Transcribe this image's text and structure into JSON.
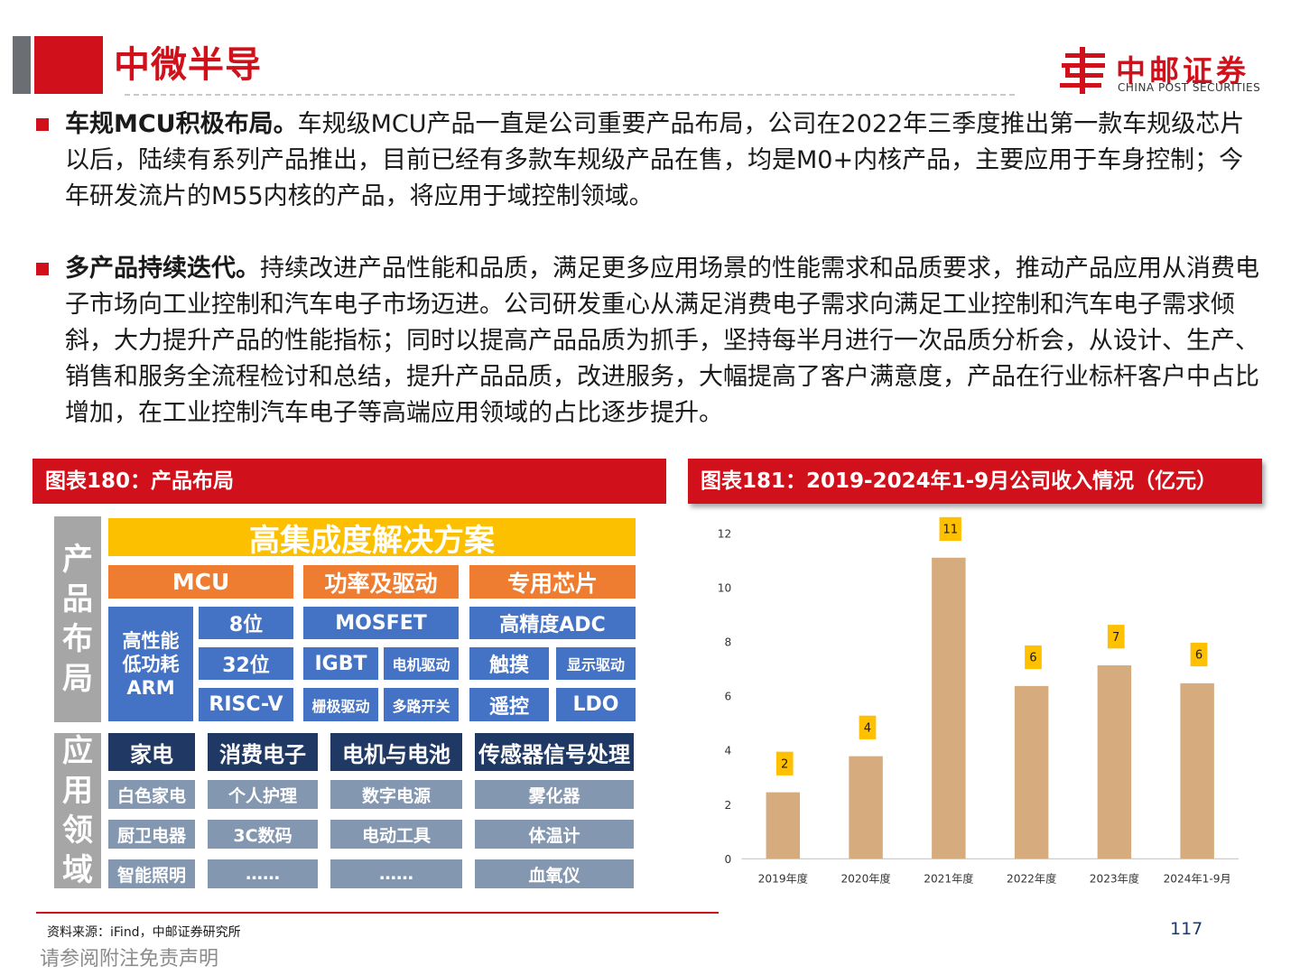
{
  "header": {
    "title": "中微半导",
    "logo_cn": "中邮证券",
    "logo_en": "CHINA POST SECURITIES",
    "brand_color": "#d0111b"
  },
  "paragraphs": [
    {
      "lead": "车规MCU积极布局。",
      "text": "车规级MCU产品一直是公司重要产品布局，公司在2022年三季度推出第一款车规级芯片以后，陆续有系列产品推出，目前已经有多款车规级产品在售，均是M0+内核产品，主要应用于车身控制；今年研发流片的M55内核的产品，将应用于域控制领域。"
    },
    {
      "lead": "多产品持续迭代。",
      "text": "持续改进产品性能和品质，满足更多应用场景的性能需求和品质要求，推动产品应用从消费电子市场向工业控制和汽车电子市场迈进。公司研发重心从满足消费电子需求向满足工业控制和汽车电子需求倾斜，大力提升产品的性能指标；同时以提高产品品质为抓手，坚持每半月进行一次品质分析会，从设计、生产、销售和服务全流程检讨和总结，提升产品品质，改进服务，大幅提高了客户满意度，产品在行业标杆客户中占比增加，在工业控制汽车电子等高端应用领域的占比逐步提升。"
    }
  ],
  "figure180": {
    "title": "图表180：产品布局",
    "side_top": "产品布局",
    "side_bottom": "应用领域",
    "banner": "高集成度解决方案",
    "categories": [
      "MCU",
      "功率及驱动",
      "专用芯片"
    ],
    "mcu_arm": "高性能低功耗ARM",
    "mcu_items": [
      "8位",
      "32位",
      "RISC-V"
    ],
    "power_top": "MOSFET",
    "power_items": [
      "IGBT",
      "电机驱动",
      "栅极驱动",
      "多路开关"
    ],
    "special_top": "高精度ADC",
    "special_items": [
      "触摸",
      "显示驱动",
      "遥控",
      "LDO"
    ],
    "apps": [
      {
        "name": "家电",
        "items": [
          "白色家电",
          "厨卫电器",
          "智能照明"
        ]
      },
      {
        "name": "消费电子",
        "items": [
          "个人护理",
          "3C数码",
          "……"
        ]
      },
      {
        "name": "电机与电池",
        "items": [
          "数字电源",
          "电动工具",
          "……"
        ]
      },
      {
        "name": "传感器信号处理",
        "items": [
          "雾化器",
          "体温计",
          "血氧仪"
        ]
      }
    ]
  },
  "figure181": {
    "title": "图表181：2019-2024年1-9月公司收入情况（亿元）"
  },
  "chart_data": {
    "type": "bar",
    "categories": [
      "2019年度",
      "2020年度",
      "2021年度",
      "2022年度",
      "2023年度",
      "2024年1-9月"
    ],
    "values": [
      2.45,
      3.78,
      11.1,
      6.37,
      7.13,
      6.47
    ],
    "data_labels": [
      "2",
      "4",
      "11",
      "6",
      "7",
      "6"
    ],
    "ylim": [
      0,
      12
    ],
    "yticks": [
      0,
      2,
      4,
      6,
      8,
      10,
      12
    ],
    "bar_color": "#d6ab7d",
    "label_color": "#ffc000",
    "grid": false
  },
  "footer": {
    "source": "资料来源：iFind，中邮证券研究所",
    "page": "117",
    "disclaimer": "请参阅附注免责声明"
  }
}
